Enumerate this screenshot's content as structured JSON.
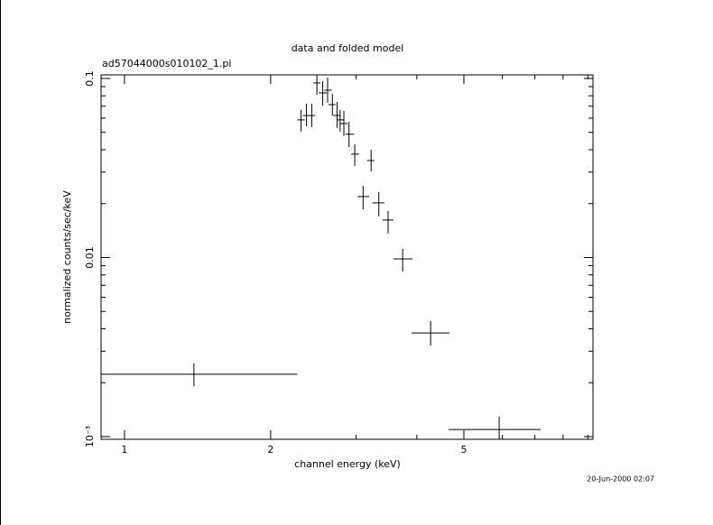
{
  "chart_data": {
    "type": "scatter",
    "title": "data and folded model",
    "subtitle": "ad57044000s010102_1.pi",
    "x_label": "channel energy (keV)",
    "y_label": "normalized counts/sec/keV",
    "annotation": "20-Jun-2000 02:07",
    "log_x": true,
    "log_y": true,
    "color": "#000000",
    "xlim": [
      0.895,
      9.22
    ],
    "ylim": [
      0.000966,
      0.1047
    ],
    "xticks": [
      1,
      2,
      5
    ],
    "xminorticks": [
      3,
      4,
      6,
      7,
      8,
      9
    ],
    "yticks": [
      {
        "value": 0.001,
        "label": "10⁻³"
      },
      0.01,
      0.1
    ],
    "yminorticks": [
      0.002,
      0.003,
      0.004,
      0.005,
      0.006,
      0.007,
      0.008,
      0.009,
      0.02,
      0.03,
      0.04,
      0.05,
      0.06,
      0.07,
      0.08,
      0.09
    ],
    "series": [
      {
        "x": [
          1.39,
          5.91,
          4.27,
          3.74,
          3.49,
          3.34,
          3.1,
          3.22,
          2.98,
          2.9,
          2.83,
          2.78,
          2.74,
          2.68,
          2.62,
          2.56,
          2.49,
          2.43,
          2.37,
          2.31
        ],
        "x_min": [
          0.895,
          4.65,
          3.9,
          3.58,
          3.4,
          3.24,
          3.02,
          3.16,
          2.93,
          2.85,
          2.78,
          2.74,
          2.69,
          2.63,
          2.58,
          2.51,
          2.45,
          2.38,
          2.33,
          2.27
        ],
        "x_max": [
          2.27,
          7.19,
          4.67,
          3.92,
          3.58,
          3.43,
          3.19,
          3.27,
          3.04,
          2.97,
          2.88,
          2.83,
          2.78,
          2.72,
          2.67,
          2.61,
          2.53,
          2.47,
          2.41,
          2.35
        ],
        "y": [
          0.00223,
          0.001096,
          0.00379,
          0.00982,
          0.0162,
          0.0202,
          0.0219,
          0.0348,
          0.0378,
          0.0488,
          0.056,
          0.0587,
          0.0621,
          0.0714,
          0.086,
          0.0831,
          0.0944,
          0.0621,
          0.0621,
          0.0587
        ],
        "y_min": [
          0.00191,
          0.000966,
          0.00323,
          0.00836,
          0.0136,
          0.017,
          0.0186,
          0.0303,
          0.0325,
          0.0414,
          0.0477,
          0.0505,
          0.0529,
          0.0621,
          0.0731,
          0.0706,
          0.0811,
          0.0535,
          0.054,
          0.0505
        ],
        "y_max": [
          0.00256,
          0.00129,
          0.00442,
          0.01117,
          0.0182,
          0.0232,
          0.0251,
          0.04,
          0.0429,
          0.0573,
          0.0659,
          0.0667,
          0.0739,
          0.0821,
          0.1012,
          0.0966,
          0.1047,
          0.0723,
          0.0723,
          0.0667
        ]
      }
    ]
  }
}
